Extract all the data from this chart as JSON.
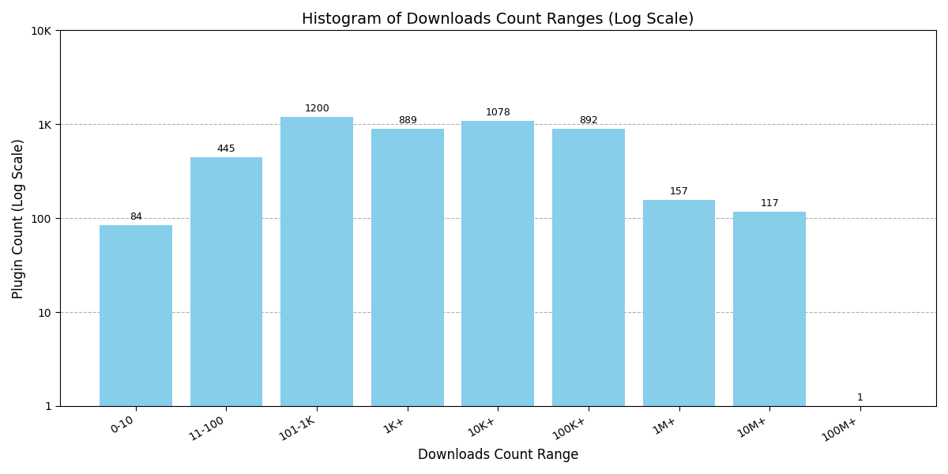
{
  "categories": [
    "0-10",
    "11-100",
    "101-1K",
    "1K+",
    "10K+",
    "100K+",
    "1M+",
    "10M+",
    "100M+"
  ],
  "values": [
    84,
    445,
    1200,
    889,
    1078,
    892,
    157,
    117,
    1
  ],
  "bar_color": "#87CEEB",
  "title": "Histogram of Downloads Count Ranges (Log Scale)",
  "xlabel": "Downloads Count Range",
  "ylabel": "Plugin Count (Log Scale)",
  "ylim_min": 1,
  "ylim_max": 10000,
  "background_color": "#ffffff",
  "grid_color": "#b0b0b0",
  "title_fontsize": 14,
  "label_fontsize": 12,
  "tick_fontsize": 10,
  "bar_width": 0.8,
  "annot_fontsize": 9
}
